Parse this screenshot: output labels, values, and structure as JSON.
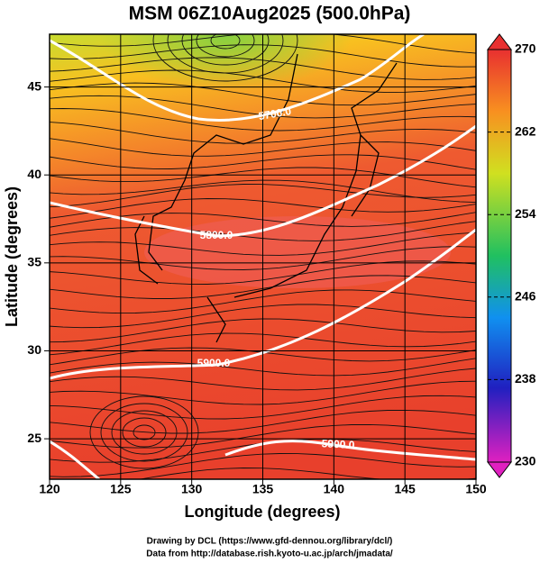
{
  "title": "MSM 06Z10Aug2025 (500.0hPa)",
  "map": {
    "x_label": "Longitude (degrees)",
    "y_label": "Latitude  (degrees)",
    "xlim": [
      120,
      150
    ],
    "ylim": [
      22.7,
      48
    ],
    "xticks": [
      120,
      125,
      130,
      135,
      140,
      145,
      150
    ],
    "yticks": [
      25,
      30,
      35,
      40,
      45
    ],
    "contour_labels": [
      "5700.0",
      "5800.0",
      "5900.0",
      "5900.0"
    ]
  },
  "colorbar": {
    "lim": [
      230,
      270
    ],
    "ticks": [
      230,
      238,
      246,
      254,
      262,
      270
    ]
  },
  "footer": [
    "Drawing by DCL (https://www.gfd-dennou.org/library/dcl/)",
    "Data from http://database.rish.kyoto-u.ac.jp/arch/jmadata/"
  ]
}
